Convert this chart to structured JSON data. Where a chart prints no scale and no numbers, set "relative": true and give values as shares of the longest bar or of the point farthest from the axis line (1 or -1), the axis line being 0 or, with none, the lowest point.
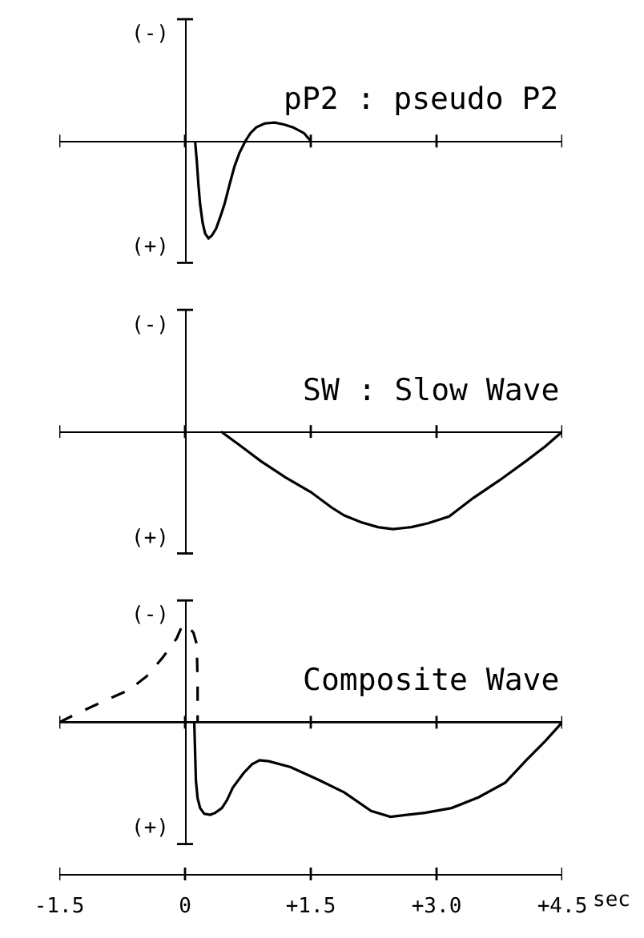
{
  "chart_data": [
    {
      "type": "line",
      "title": "pP2 : pseudo P2",
      "annotations": [
        "(-)",
        "(+)"
      ],
      "relative": true,
      "xlim": [
        -1.5,
        4.5
      ],
      "xticks": [
        -1.5,
        0,
        1.5,
        3,
        4.5
      ],
      "tick_labels": false,
      "line_style": "solid",
      "series": [
        {
          "color": "#000000",
          "x": [
            0.12,
            0.14,
            0.16,
            0.18,
            0.21,
            0.24,
            0.28,
            0.32,
            0.37,
            0.42,
            0.47,
            0.53,
            0.59,
            0.65,
            0.72,
            0.78,
            0.85,
            0.95,
            1.07,
            1.18,
            1.29,
            1.42,
            1.5
          ],
          "values": [
            0,
            -0.2,
            -0.45,
            -0.65,
            -0.84,
            -0.95,
            -1,
            -0.97,
            -0.9,
            -0.78,
            -0.65,
            -0.45,
            -0.26,
            -0.12,
            0,
            0.08,
            0.14,
            0.18,
            0.19,
            0.17,
            0.14,
            0.08,
            0
          ]
        }
      ]
    },
    {
      "type": "line",
      "title": "SW : Slow Wave",
      "annotations": [
        "(-)",
        "(+)"
      ],
      "relative": true,
      "xlim": [
        -1.5,
        4.5
      ],
      "xticks": [
        -1.5,
        0,
        1.5,
        3,
        4.5
      ],
      "tick_labels": false,
      "line_style": "solid",
      "series": [
        {
          "color": "#000000",
          "x": [
            0.43,
            0.7,
            0.9,
            1.2,
            1.5,
            1.75,
            1.9,
            2.1,
            2.3,
            2.48,
            2.7,
            2.9,
            3.15,
            3.44,
            3.75,
            4.07,
            4.3,
            4.5
          ],
          "values": [
            0,
            -0.17,
            -0.3,
            -0.47,
            -0.62,
            -0.78,
            -0.86,
            -0.93,
            -0.98,
            -1,
            -0.98,
            -0.94,
            -0.87,
            -0.68,
            -0.5,
            -0.3,
            -0.15,
            0
          ]
        }
      ]
    },
    {
      "type": "line",
      "title": "Composite Wave",
      "annotations": [
        "(-)",
        "(+)"
      ],
      "xlabel": "sec",
      "relative": true,
      "xlim": [
        -1.5,
        4.5
      ],
      "xticks": [
        -1.5,
        0,
        {
          "value": 1.5,
          "label": "+1.5"
        },
        {
          "value": 3,
          "label": "+3.0"
        },
        {
          "value": 4.5,
          "label": "+4.5"
        }
      ],
      "tick_labels": "x",
      "line_style": "solid",
      "series": [
        {
          "color": "#000000",
          "line_style": "dashed",
          "x": [
            -1.5,
            -1.24,
            -0.96,
            -0.67,
            -0.46,
            -0.27,
            -0.1,
            -0.03,
            0.04,
            0.1,
            0.14,
            0.15,
            0.15
          ],
          "values": [
            0,
            0.11,
            0.22,
            0.33,
            0.47,
            0.66,
            0.86,
            1,
            0.98,
            0.92,
            0.8,
            0.4,
            0
          ]
        },
        {
          "color": "#000000",
          "x": [
            0.11,
            0.12,
            0.13,
            0.15,
            0.18,
            0.23,
            0.3,
            0.36,
            0.44,
            0.5,
            0.57,
            0.7,
            0.8,
            0.89,
            1.0,
            1.26,
            1.59,
            1.9,
            2.22,
            2.45,
            2.86,
            3.18,
            3.5,
            3.82,
            4.07,
            4.3,
            4.5
          ],
          "values": [
            0,
            -0.3,
            -0.6,
            -0.78,
            -0.88,
            -0.94,
            -0.95,
            -0.93,
            -0.88,
            -0.8,
            -0.67,
            -0.52,
            -0.43,
            -0.39,
            -0.4,
            -0.46,
            -0.59,
            -0.72,
            -0.91,
            -0.97,
            -0.93,
            -0.88,
            -0.77,
            -0.62,
            -0.39,
            -0.19,
            0
          ]
        }
      ]
    }
  ]
}
